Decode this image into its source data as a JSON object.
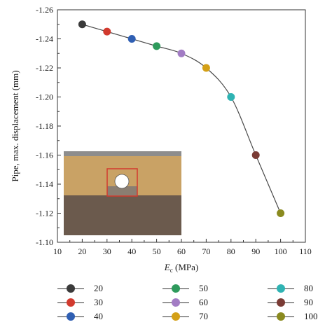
{
  "chart_data": {
    "type": "line",
    "title": "",
    "xlabel_main": "E",
    "xlabel_sub": "c",
    "xlabel_unit": " (MPa)",
    "ylabel": "Pipe, max. displacement (mm)",
    "xlim": [
      10,
      110
    ],
    "ylim": [
      -1.26,
      -1.1
    ],
    "y_axis_inverted": true,
    "xticks": [
      10,
      20,
      30,
      40,
      50,
      60,
      70,
      80,
      90,
      100,
      110
    ],
    "xtick_labels": [
      "10",
      "20",
      "30",
      "40",
      "50",
      "60",
      "70",
      "80",
      "90",
      "100",
      "110"
    ],
    "yticks": [
      -1.26,
      -1.24,
      -1.22,
      -1.2,
      -1.18,
      -1.16,
      -1.14,
      -1.12,
      -1.1
    ],
    "ytick_labels": [
      "-1.26",
      "-1.24",
      "-1.22",
      "-1.20",
      "-1.18",
      "-1.16",
      "-1.14",
      "-1.12",
      "-1.10"
    ],
    "x": [
      20,
      30,
      40,
      50,
      60,
      70,
      80,
      90,
      100
    ],
    "y": [
      -1.25,
      -1.245,
      -1.24,
      -1.235,
      -1.23,
      -1.22,
      -1.2,
      -1.16,
      -1.12
    ],
    "point_colors": [
      "#3a3a3a",
      "#d23a2e",
      "#2f5fb3",
      "#2e9a5c",
      "#a27cc4",
      "#d4a017",
      "#2fb3b3",
      "#7a3b35",
      "#8a8a1f"
    ],
    "line_color": "#4a4a4a",
    "grid": false,
    "legend": {
      "position": "bottom",
      "entries": [
        "20",
        "30",
        "40",
        "50",
        "60",
        "70",
        "80",
        "90",
        "100"
      ],
      "colors": [
        "#3a3a3a",
        "#d23a2e",
        "#2f5fb3",
        "#2e9a5c",
        "#a27cc4",
        "#d4a017",
        "#2fb3b3",
        "#7a3b35",
        "#8a8a1f"
      ]
    },
    "inset": {
      "description_colors": {
        "top_strip": "#8d8d8d",
        "upper_soil": "#c9a265",
        "lower_soil": "#6b5a4d",
        "trench_box": "#d23a2e",
        "pipe": "#ffffff"
      }
    }
  }
}
